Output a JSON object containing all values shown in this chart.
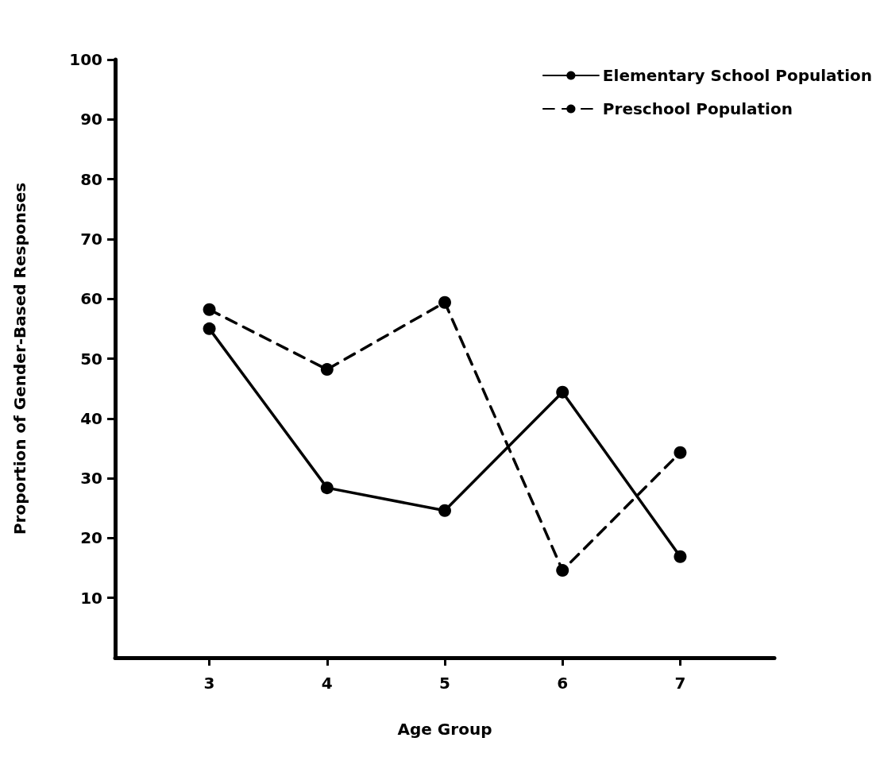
{
  "chart_data": {
    "type": "line",
    "xlabel": "Age Group",
    "ylabel": "Proportion of Gender-Based Responses",
    "x": [
      3,
      4,
      5,
      6,
      7
    ],
    "series": [
      {
        "name": "Elementary School Population",
        "color": "#000000",
        "line_style": "solid",
        "values": [
          55,
          28.4,
          24.6,
          44.4,
          16.9
        ]
      },
      {
        "name": "Preschool Population",
        "color": "#000000",
        "line_style": "dashed",
        "values": [
          58.2,
          48.2,
          59.4,
          14.6,
          34.3
        ]
      }
    ],
    "xlim": [
      2.2,
      7.8
    ],
    "xticks": [
      3,
      4,
      5,
      6,
      7
    ],
    "ylim": [
      0,
      100
    ],
    "yticks": [
      10,
      20,
      30,
      40,
      50,
      60,
      70,
      80,
      90,
      100
    ],
    "grid": false,
    "legend": "top right",
    "marker": "circle"
  }
}
